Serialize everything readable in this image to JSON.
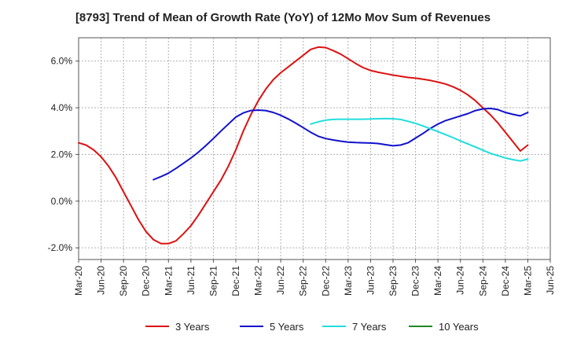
{
  "chart_data": {
    "type": "line",
    "title": "[8793]  Trend of Mean of Growth Rate (YoY) of 12Mo Mov Sum of Revenues",
    "xlabel": "",
    "ylabel": "",
    "x_tick_labels": [
      "Mar-20",
      "Jun-20",
      "Sep-20",
      "Dec-20",
      "Mar-21",
      "Jun-21",
      "Sep-21",
      "Dec-21",
      "Mar-22",
      "Jun-22",
      "Sep-22",
      "Dec-22",
      "Mar-23",
      "Jun-23",
      "Sep-23",
      "Dec-23",
      "Mar-24",
      "Jun-24",
      "Sep-24",
      "Dec-24",
      "Mar-25",
      "Jun-25"
    ],
    "y_tick_labels": [
      "-2.0%",
      "0.0%",
      "2.0%",
      "4.0%",
      "6.0%"
    ],
    "y_ticks": [
      -2,
      0,
      2,
      4,
      6
    ],
    "ylim": [
      -2.5,
      7.0
    ],
    "xlim": [
      0,
      63
    ],
    "grid": true,
    "legend_position": "bottom",
    "series": [
      {
        "name": "3 Years",
        "color": "#dd1111",
        "x": [
          0,
          1,
          2,
          3,
          4,
          5,
          6,
          7,
          8,
          9,
          10,
          11,
          12,
          13,
          14,
          15,
          16,
          17,
          18,
          19,
          20,
          21,
          22,
          23,
          24,
          25,
          26,
          27,
          28,
          29,
          30,
          31,
          32,
          33,
          34,
          35,
          36,
          37,
          38,
          39,
          40,
          41,
          42,
          43,
          44,
          45,
          46,
          47,
          48,
          49,
          50,
          51,
          52,
          53,
          54,
          55,
          56,
          57,
          58,
          59,
          60
        ],
        "values": [
          2.5,
          2.4,
          2.2,
          1.9,
          1.5,
          1.0,
          0.4,
          -0.2,
          -0.8,
          -1.3,
          -1.65,
          -1.82,
          -1.82,
          -1.7,
          -1.4,
          -1.05,
          -0.6,
          -0.1,
          0.4,
          0.9,
          1.5,
          2.2,
          3.0,
          3.7,
          4.3,
          4.8,
          5.2,
          5.5,
          5.75,
          6.0,
          6.25,
          6.5,
          6.6,
          6.58,
          6.45,
          6.3,
          6.1,
          5.9,
          5.72,
          5.6,
          5.52,
          5.46,
          5.4,
          5.35,
          5.3,
          5.27,
          5.22,
          5.17,
          5.1,
          5.02,
          4.9,
          4.75,
          4.55,
          4.3,
          4.0,
          3.7,
          3.35,
          2.95,
          2.55,
          2.15,
          2.4
        ],
        "values_note": ""
      },
      {
        "name": "5 Years",
        "color": "#1111cc",
        "x": [
          10,
          11,
          12,
          13,
          14,
          15,
          16,
          17,
          18,
          19,
          20,
          21,
          22,
          23,
          24,
          25,
          26,
          27,
          28,
          29,
          30,
          31,
          32,
          33,
          34,
          35,
          36,
          37,
          38,
          39,
          40,
          41,
          42,
          43,
          44,
          45,
          46,
          47,
          48,
          49,
          50,
          51,
          52,
          53,
          54,
          55,
          56,
          57,
          58,
          59,
          60
        ],
        "values": [
          0.92,
          1.05,
          1.2,
          1.4,
          1.62,
          1.85,
          2.1,
          2.38,
          2.68,
          3.0,
          3.3,
          3.6,
          3.78,
          3.88,
          3.9,
          3.88,
          3.8,
          3.68,
          3.52,
          3.34,
          3.15,
          2.95,
          2.78,
          2.68,
          2.62,
          2.57,
          2.53,
          2.51,
          2.5,
          2.49,
          2.47,
          2.42,
          2.37,
          2.4,
          2.5,
          2.7,
          2.9,
          3.12,
          3.3,
          3.45,
          3.55,
          3.65,
          3.75,
          3.88,
          3.95,
          3.97,
          3.92,
          3.8,
          3.72,
          3.65,
          3.8
        ]
      },
      {
        "name": "7 Years",
        "color": "#22dddd",
        "x": [
          31,
          32,
          33,
          34,
          35,
          36,
          37,
          38,
          39,
          40,
          41,
          42,
          43,
          44,
          45,
          46,
          47,
          48,
          49,
          50,
          51,
          52,
          53,
          54,
          55,
          56,
          57,
          58,
          59,
          60
        ],
        "values": [
          3.3,
          3.4,
          3.47,
          3.5,
          3.51,
          3.51,
          3.51,
          3.51,
          3.52,
          3.53,
          3.54,
          3.53,
          3.5,
          3.42,
          3.33,
          3.22,
          3.1,
          2.98,
          2.85,
          2.72,
          2.58,
          2.45,
          2.32,
          2.18,
          2.05,
          1.95,
          1.85,
          1.78,
          1.72,
          1.8
        ]
      },
      {
        "name": "10 Years",
        "color": "#228822",
        "x": [],
        "values": []
      }
    ]
  }
}
